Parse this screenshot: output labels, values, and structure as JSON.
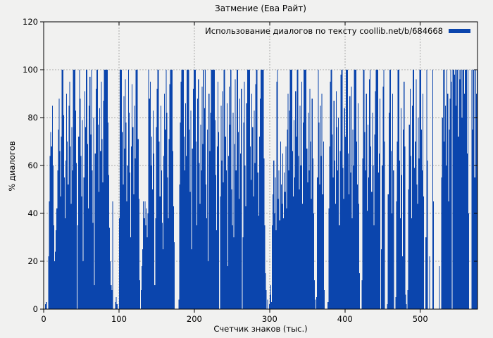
{
  "chart_data": {
    "type": "bar",
    "title": "Затмение (Ева Райт)",
    "legend_label": "Использование диалогов по тексту coollib.net/b/684668",
    "legend_position": "top-right",
    "xlabel": "Счетчик знаков (тыс.)",
    "ylabel": "% диалогов",
    "xlim": [
      0,
      576
    ],
    "ylim": [
      0,
      120
    ],
    "x_ticks": [
      0,
      100,
      200,
      300,
      400,
      500
    ],
    "y_ticks": [
      0,
      20,
      40,
      60,
      80,
      100,
      120
    ],
    "grid": true,
    "bar_color": "#0b45ad",
    "grid_color": "#aaaaaa",
    "border_color": "#000000",
    "x_start": 0,
    "x_step": 1,
    "values": [
      0,
      0,
      2,
      3,
      0,
      0,
      22,
      45,
      64,
      74,
      68,
      85,
      60,
      35,
      20,
      24,
      33,
      42,
      58,
      75,
      88,
      66,
      47,
      72,
      100,
      100,
      81,
      55,
      38,
      62,
      90,
      70,
      52,
      85,
      95,
      68,
      44,
      76,
      58,
      100,
      100,
      100,
      83,
      61,
      0,
      35,
      72,
      100,
      88,
      64,
      47,
      79,
      20,
      55,
      91,
      76,
      100,
      100,
      69,
      42,
      85,
      97,
      73,
      100,
      58,
      36,
      80,
      10,
      65,
      92,
      100,
      100,
      77,
      49,
      84,
      66,
      95,
      71,
      53,
      87,
      100,
      100,
      100,
      100,
      100,
      78,
      56,
      34,
      20,
      10,
      8,
      45,
      0,
      0,
      0,
      3,
      5,
      2,
      0,
      0,
      38,
      100,
      100,
      100,
      74,
      52,
      89,
      67,
      96,
      78,
      45,
      60,
      100,
      82,
      57,
      30,
      68,
      94,
      76,
      48,
      85,
      63,
      100,
      100,
      100,
      71,
      46,
      12,
      0,
      8,
      18,
      25,
      45,
      38,
      45,
      35,
      42,
      30,
      40,
      100,
      88,
      95,
      60,
      72,
      50,
      83,
      65,
      10,
      38,
      76,
      92,
      100,
      100,
      70,
      47,
      85,
      58,
      36,
      25,
      64,
      90,
      75,
      100,
      82,
      55,
      38,
      71,
      94,
      100,
      100,
      100,
      66,
      43,
      28,
      0,
      0,
      0,
      0,
      0,
      4,
      52,
      78,
      95,
      100,
      100,
      100,
      72,
      58,
      86,
      64,
      100,
      100,
      100,
      75,
      49,
      83,
      25,
      67,
      92,
      100,
      100,
      100,
      70,
      35,
      88,
      96,
      61,
      44,
      77,
      58,
      93,
      69,
      100,
      84,
      100,
      52,
      38,
      75,
      20,
      90,
      66,
      82,
      100,
      100,
      100,
      100,
      100,
      79,
      56,
      33,
      68,
      95,
      74,
      0,
      47,
      85,
      62,
      91,
      53,
      100,
      100,
      72,
      58,
      86,
      18,
      64,
      93,
      77,
      100,
      50,
      35,
      82,
      30,
      69,
      96,
      58,
      100,
      100,
      74,
      46,
      88,
      65,
      92,
      0,
      30,
      78,
      95,
      60,
      43,
      86,
      100,
      100,
      100,
      100,
      68,
      54,
      90,
      76,
      47,
      83,
      61,
      94,
      100,
      100,
      57,
      39,
      72,
      88,
      100,
      100,
      100,
      100,
      63,
      35,
      15,
      8,
      0,
      4,
      0,
      2,
      6,
      10,
      3,
      35,
      48,
      62,
      40,
      55,
      33,
      95,
      100,
      46,
      58,
      37,
      70,
      52,
      44,
      65,
      38,
      57,
      49,
      68,
      42,
      75,
      90,
      58,
      83,
      100,
      100,
      100,
      66,
      47,
      79,
      55,
      91,
      72,
      100,
      100,
      64,
      50,
      85,
      60,
      95,
      44,
      78,
      100,
      100,
      100,
      100,
      67,
      53,
      82,
      58,
      92,
      70,
      46,
      88,
      63,
      40,
      12,
      4,
      0,
      5,
      55,
      100,
      78,
      52,
      85,
      64,
      90,
      48,
      70,
      8,
      0,
      0,
      0,
      0,
      3,
      42,
      68,
      95,
      100,
      100,
      73,
      55,
      87,
      62,
      44,
      91,
      76,
      58,
      80,
      35,
      66,
      98,
      100,
      100,
      59,
      46,
      84,
      72,
      100,
      100,
      100,
      65,
      48,
      89,
      57,
      93,
      38,
      75,
      60,
      100,
      100,
      100,
      70,
      52,
      86,
      44,
      15,
      0,
      0,
      12,
      63,
      100,
      100,
      74,
      58,
      90,
      41,
      77,
      55,
      96,
      100,
      68,
      49,
      82,
      60,
      35,
      73,
      91,
      100,
      100,
      100,
      57,
      65,
      88,
      0,
      25,
      60,
      93,
      100,
      70,
      0,
      0,
      0,
      2,
      48,
      82,
      100,
      100,
      66,
      40,
      90,
      58,
      0,
      0,
      5,
      45,
      70,
      100,
      100,
      62,
      38,
      84,
      56,
      22,
      75,
      95,
      68,
      6,
      2,
      0,
      8,
      50,
      77,
      92,
      64,
      38,
      85,
      100,
      100,
      59,
      70,
      96,
      52,
      44,
      80,
      63,
      100,
      100,
      75,
      58,
      90,
      47,
      0,
      0,
      30,
      100,
      62,
      0,
      0,
      22,
      0,
      0,
      0,
      100,
      45,
      0,
      0,
      0,
      0,
      0,
      0,
      0,
      18,
      0,
      0,
      55,
      80,
      100,
      70,
      100,
      85,
      60,
      100,
      90,
      45,
      75,
      88,
      100,
      95,
      0,
      100,
      100,
      98,
      100,
      85,
      100,
      100,
      72,
      100,
      96,
      100,
      100,
      80,
      100,
      100,
      90,
      100,
      100,
      100,
      65,
      100,
      40,
      0,
      0,
      0,
      100,
      75,
      100,
      100,
      55,
      100,
      90,
      100
    ]
  }
}
